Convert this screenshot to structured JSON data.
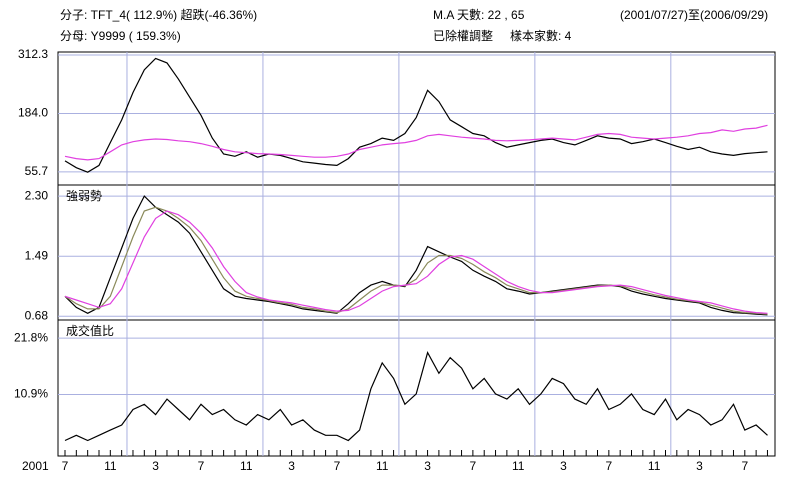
{
  "header": {
    "line1_left": "分子:  TFT_4( 112.9%)  超跌(-46.36%)",
    "line2_left": "分母: Y9999 ( 159.3%)",
    "ma": "M.A 天數: 22 , 65",
    "range": "(2001/07/27)至(2006/09/29)",
    "adjusted": "已除權調整",
    "sample": "樣本家數: 4"
  },
  "chart_data": [
    {
      "type": "line",
      "ylim": [
        27,
        319
      ],
      "yticks": [
        55.7,
        {
          "value": 184,
          "label": "184.0"
        },
        312.3
      ],
      "grid": true,
      "series": [
        {
          "color": "#000000",
          "values": [
            80,
            65,
            55,
            70,
            120,
            170,
            230,
            280,
            305,
            295,
            260,
            220,
            180,
            130,
            95,
            90,
            100,
            88,
            95,
            92,
            85,
            78,
            75,
            72,
            70,
            85,
            110,
            118,
            130,
            125,
            140,
            175,
            235,
            210,
            170,
            155,
            140,
            135,
            120,
            110,
            115,
            120,
            125,
            128,
            120,
            115,
            125,
            135,
            130,
            128,
            118,
            122,
            128,
            120,
            112,
            105,
            110,
            100,
            95,
            92,
            96,
            98,
            100
          ]
        },
        {
          "color": "#e040e0",
          "values": [
            90,
            85,
            82,
            85,
            100,
            115,
            122,
            126,
            128,
            127,
            124,
            122,
            118,
            112,
            105,
            100,
            98,
            96,
            95,
            94,
            92,
            90,
            88,
            88,
            90,
            95,
            105,
            110,
            115,
            118,
            120,
            125,
            135,
            138,
            135,
            132,
            130,
            128,
            125,
            124,
            125,
            126,
            128,
            130,
            128,
            126,
            132,
            138,
            140,
            138,
            132,
            130,
            128,
            130,
            132,
            135,
            140,
            142,
            148,
            145,
            150,
            152,
            158
          ]
        }
      ]
    },
    {
      "type": "line",
      "title": "強弱勢",
      "ylim": [
        0.63,
        2.45
      ],
      "yticks": [
        0.68,
        1.49,
        {
          "value": 2.3,
          "label": "2.30"
        }
      ],
      "grid": true,
      "series": [
        {
          "color": "#000000",
          "values": [
            0.95,
            0.8,
            0.72,
            0.8,
            1.2,
            1.6,
            2.0,
            2.3,
            2.15,
            2.05,
            1.95,
            1.8,
            1.55,
            1.3,
            1.05,
            0.95,
            0.92,
            0.9,
            0.88,
            0.85,
            0.82,
            0.78,
            0.76,
            0.74,
            0.72,
            0.85,
            1.0,
            1.1,
            1.15,
            1.1,
            1.08,
            1.3,
            1.62,
            1.55,
            1.48,
            1.42,
            1.3,
            1.22,
            1.15,
            1.05,
            1.02,
            0.98,
            1.0,
            1.02,
            1.04,
            1.06,
            1.08,
            1.1,
            1.1,
            1.08,
            1.02,
            0.98,
            0.95,
            0.92,
            0.9,
            0.88,
            0.86,
            0.8,
            0.76,
            0.73,
            0.72,
            0.71,
            0.7
          ]
        },
        {
          "color": "#8a8a5a",
          "values": [
            0.95,
            0.85,
            0.78,
            0.78,
            0.95,
            1.35,
            1.75,
            2.1,
            2.15,
            2.1,
            2.0,
            1.88,
            1.7,
            1.45,
            1.2,
            1.02,
            0.95,
            0.92,
            0.89,
            0.86,
            0.84,
            0.8,
            0.78,
            0.75,
            0.73,
            0.78,
            0.9,
            1.02,
            1.1,
            1.1,
            1.09,
            1.18,
            1.4,
            1.5,
            1.5,
            1.46,
            1.38,
            1.28,
            1.2,
            1.1,
            1.05,
            1.0,
            1.0,
            1.01,
            1.03,
            1.05,
            1.07,
            1.09,
            1.1,
            1.09,
            1.05,
            1.01,
            0.97,
            0.94,
            0.91,
            0.89,
            0.87,
            0.83,
            0.79,
            0.75,
            0.73,
            0.72,
            0.71
          ]
        },
        {
          "color": "#e040e0",
          "values": [
            0.95,
            0.9,
            0.85,
            0.8,
            0.85,
            1.05,
            1.4,
            1.75,
            2.0,
            2.1,
            2.05,
            1.95,
            1.8,
            1.6,
            1.35,
            1.15,
            1.0,
            0.94,
            0.9,
            0.88,
            0.86,
            0.83,
            0.8,
            0.77,
            0.75,
            0.76,
            0.82,
            0.92,
            1.02,
            1.08,
            1.1,
            1.12,
            1.22,
            1.38,
            1.48,
            1.5,
            1.45,
            1.35,
            1.25,
            1.15,
            1.08,
            1.03,
            1.0,
            1.0,
            1.02,
            1.04,
            1.06,
            1.08,
            1.09,
            1.1,
            1.08,
            1.04,
            1.0,
            0.96,
            0.93,
            0.9,
            0.88,
            0.86,
            0.82,
            0.78,
            0.75,
            0.73,
            0.72
          ]
        }
      ]
    },
    {
      "type": "line",
      "title": "成交值比",
      "x_year_label": "2001",
      "ylim": [
        -1,
        25.3
      ],
      "yticks": [
        {
          "value": 10.9,
          "label": "10.9%"
        },
        {
          "value": 21.8,
          "label": "21.8%"
        }
      ],
      "grid": true,
      "categories": [
        "7",
        null,
        null,
        null,
        "11",
        null,
        null,
        null,
        "3",
        null,
        null,
        null,
        "7",
        null,
        null,
        null,
        "11",
        null,
        null,
        null,
        "3",
        null,
        null,
        null,
        "7",
        null,
        null,
        null,
        "11",
        null,
        null,
        null,
        "3",
        null,
        null,
        null,
        "7",
        null,
        null,
        null,
        "11",
        null,
        null,
        null,
        "3",
        null,
        null,
        null,
        "7",
        null,
        null,
        null,
        "11",
        null,
        null,
        null,
        "3",
        null,
        null,
        null,
        "7",
        null,
        null
      ],
      "series": [
        {
          "color": "#000000",
          "values": [
            2,
            3,
            2,
            3,
            4,
            5,
            8,
            9,
            7,
            10,
            8,
            6,
            9,
            7,
            8,
            6,
            5,
            7,
            6,
            8,
            5,
            6,
            4,
            3,
            3,
            2,
            4,
            12,
            17,
            14,
            9,
            11,
            19,
            15,
            18,
            16,
            12,
            14,
            11,
            10,
            12,
            9,
            11,
            14,
            13,
            10,
            9,
            12,
            8,
            9,
            11,
            8,
            7,
            10,
            6,
            8,
            7,
            5,
            6,
            9,
            4,
            5,
            3
          ]
        }
      ]
    }
  ]
}
